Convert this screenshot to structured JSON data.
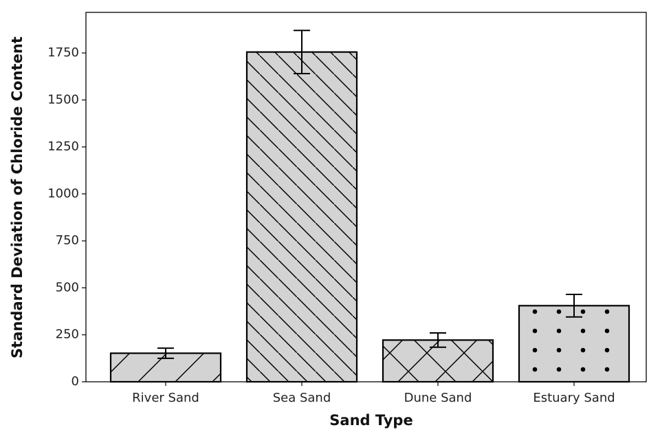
{
  "chart_data": {
    "type": "bar",
    "x_label": "Sand Type",
    "y_label": "Standard Deviation of Chloride Content",
    "categories": [
      "River Sand",
      "Sea Sand",
      "Dune Sand",
      "Estuary Sand"
    ],
    "values": [
      152,
      1755,
      222,
      405
    ],
    "errors": [
      27,
      115,
      38,
      60
    ],
    "hatches": [
      "/",
      "\\",
      "x",
      "."
    ],
    "color": "#d3d3d3",
    "edgecolor": "#000000",
    "ylim": [
      0,
      1966
    ],
    "yticks": [
      0,
      250,
      500,
      750,
      1000,
      1250,
      1500,
      1750
    ],
    "grid": false
  }
}
